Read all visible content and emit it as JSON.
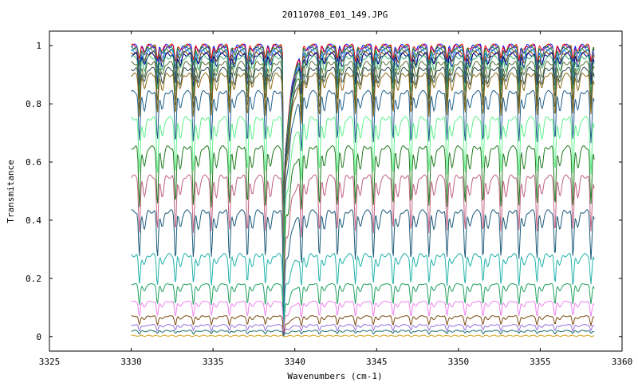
{
  "chart_data": {
    "type": "line",
    "title": "20110708_E01_149.JPG",
    "xlabel": "Wavenumbers (cm-1)",
    "ylabel": "Transmitance",
    "xlim": [
      3325,
      3360
    ],
    "ylim": [
      -0.05,
      1.05
    ],
    "x_ticks": [
      "3325",
      "3330",
      "3335",
      "3340",
      "3345",
      "3350",
      "3355",
      "3360"
    ],
    "y_ticks": [
      "0",
      "0.2",
      "0.4",
      "0.6",
      "0.8",
      "1"
    ],
    "x_tick_values": [
      3325,
      3330,
      3335,
      3340,
      3345,
      3350,
      3355,
      3360
    ],
    "y_tick_values": [
      0,
      0.2,
      0.4,
      0.6,
      0.8,
      1
    ],
    "grid": false,
    "legend": "none",
    "x_range_data": [
      3330,
      3358.3
    ],
    "edge_x": 3339.3,
    "absorption_lines_x": [
      3330.5,
      3331.6,
      3332.7,
      3333.8,
      3334.9,
      3336.0,
      3337.1,
      3338.2,
      3339.3,
      3340.4,
      3341.5,
      3342.6,
      3343.7,
      3344.8,
      3346.0,
      3347.1,
      3348.2,
      3349.3,
      3350.4,
      3351.5,
      3352.6,
      3353.7,
      3354.8,
      3355.9,
      3357.0,
      3358.1
    ],
    "series": [
      {
        "color": "#0000ff",
        "baseline": 1.0,
        "dip": 0.06
      },
      {
        "color": "#ff0000",
        "baseline": 1.0,
        "dip": 0.05
      },
      {
        "color": "#228b22",
        "baseline": 0.995,
        "dip": 0.07
      },
      {
        "color": "#6a5acd",
        "baseline": 0.99,
        "dip": 0.08
      },
      {
        "color": "#2e8b57",
        "baseline": 0.985,
        "dip": 0.09
      },
      {
        "color": "#1e90ff",
        "baseline": 0.98,
        "dip": 0.1
      },
      {
        "color": "#8b4513",
        "baseline": 0.975,
        "dip": 0.1
      },
      {
        "color": "#00008b",
        "baseline": 0.97,
        "dip": 0.11
      },
      {
        "color": "#3cb371",
        "baseline": 0.96,
        "dip": 0.12
      },
      {
        "color": "#556b2f",
        "baseline": 0.94,
        "dip": 0.13
      },
      {
        "color": "#2f4f4f",
        "baseline": 0.92,
        "dip": 0.14
      },
      {
        "color": "#8b6914",
        "baseline": 0.9,
        "dip": 0.14
      },
      {
        "color": "#1f5f8b",
        "baseline": 0.84,
        "dip": 0.17
      },
      {
        "color": "#5ef08a",
        "baseline": 0.75,
        "dip": 0.19
      },
      {
        "color": "#1e7a1e",
        "baseline": 0.65,
        "dip": 0.2
      },
      {
        "color": "#c06080",
        "baseline": 0.55,
        "dip": 0.19
      },
      {
        "color": "#1a5a7a",
        "baseline": 0.43,
        "dip": 0.16
      },
      {
        "color": "#20b2aa",
        "baseline": 0.28,
        "dip": 0.1
      },
      {
        "color": "#20a060",
        "baseline": 0.18,
        "dip": 0.07
      },
      {
        "color": "#ee82ee",
        "baseline": 0.12,
        "dip": 0.05
      },
      {
        "color": "#7a4a10",
        "baseline": 0.07,
        "dip": 0.03
      },
      {
        "color": "#9370db",
        "baseline": 0.04,
        "dip": 0.02
      },
      {
        "color": "#1a6a6a",
        "baseline": 0.02,
        "dip": 0.01
      },
      {
        "color": "#d4a017",
        "baseline": 0.003,
        "dip": 0.002
      }
    ]
  }
}
